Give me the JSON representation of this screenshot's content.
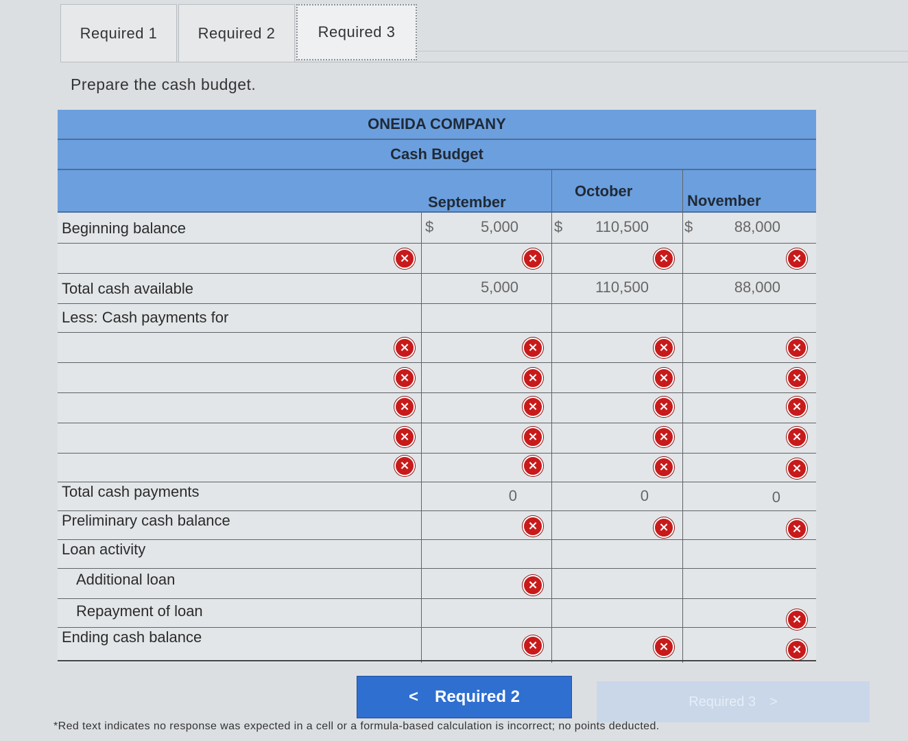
{
  "tabs": [
    {
      "label": "Required 1"
    },
    {
      "label": "Required 2"
    },
    {
      "label": "Required 3"
    }
  ],
  "prompt": "Prepare the cash budget.",
  "budget": {
    "company": "ONEIDA COMPANY",
    "title": "Cash Budget",
    "months": [
      "September",
      "October",
      "November"
    ],
    "currency_symbol": "$",
    "labels": {
      "beginning_balance": "Beginning balance",
      "total_cash_available": "Total cash available",
      "less_cash_payments": "Less: Cash payments for",
      "total_cash_payments": "Total cash payments",
      "preliminary_cash_balance": "Preliminary cash balance",
      "loan_activity": "Loan activity",
      "additional_loan": "Additional loan",
      "repayment_of_loan": "Repayment of loan",
      "ending_cash_balance": "Ending cash balance"
    },
    "beginning_balance": [
      "5,000",
      "110,500",
      "88,000"
    ],
    "total_cash_available": [
      "5,000",
      "110,500",
      "88,000"
    ],
    "total_cash_payments": [
      "0",
      "0",
      "0"
    ]
  },
  "icons": {
    "incorrect": "x-circle-icon",
    "incorrect_color": "#c81a1a",
    "header_color": "#6c9fde"
  },
  "nav": {
    "prev_label": "Required 2",
    "prev_arrow": "<",
    "next_label": "Required 3",
    "next_arrow": ">"
  },
  "footnote": "*Red text indicates no response was expected in a cell or a formula-based calculation is incorrect; no points deducted."
}
